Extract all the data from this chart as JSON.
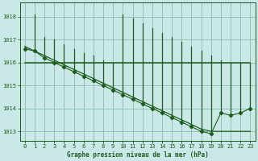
{
  "bg_color": "#cbe8e8",
  "grid_color": "#88bbaa",
  "line_color": "#1a5c1a",
  "title": "Graphe pression niveau de la mer (hPa)",
  "ylim": [
    1012.6,
    1018.6
  ],
  "xlim": [
    -0.5,
    23.5
  ],
  "yticks": [
    1013,
    1014,
    1015,
    1016,
    1017,
    1018
  ],
  "xticks": [
    0,
    1,
    2,
    3,
    4,
    5,
    6,
    7,
    8,
    9,
    10,
    11,
    12,
    13,
    14,
    15,
    16,
    17,
    18,
    19,
    20,
    21,
    22,
    23
  ],
  "hours": [
    0,
    1,
    2,
    3,
    4,
    5,
    6,
    7,
    8,
    9,
    10,
    11,
    12,
    13,
    14,
    15,
    16,
    17,
    18,
    19,
    20,
    21,
    22,
    23
  ],
  "pressure_main": [
    1016.7,
    1016.5,
    1016.3,
    1016.1,
    1015.9,
    1015.7,
    1015.5,
    1015.3,
    1015.1,
    1014.9,
    1014.7,
    1014.5,
    1014.3,
    1014.1,
    1013.9,
    1013.7,
    1013.5,
    1013.3,
    1013.1,
    1013.0,
    1013.0,
    1013.0,
    1013.0,
    1013.0
  ],
  "pressure_dots": [
    1016.6,
    1016.5,
    1016.2,
    1016.0,
    1015.8,
    1015.6,
    1015.4,
    1015.2,
    1015.0,
    1014.8,
    1014.6,
    1014.4,
    1014.2,
    1014.0,
    1013.8,
    1013.6,
    1013.4,
    1013.2,
    1013.0,
    1012.9,
    1013.8,
    1013.7,
    1013.8,
    1014.0
  ],
  "pressure_flat": [
    1016.0,
    1016.0,
    1016.0,
    1016.0,
    1016.0,
    1016.0,
    1016.0,
    1016.0,
    1016.0,
    1016.0,
    1016.0,
    1016.0,
    1016.0,
    1016.0,
    1016.0,
    1016.0,
    1016.0,
    1016.0,
    1016.0,
    1016.0,
    1016.0,
    1016.0,
    1016.0,
    1016.0
  ],
  "spike_tops": [
    1016.7,
    1018.1,
    1017.1,
    1017.0,
    1016.8,
    1016.6,
    1016.4,
    1016.3,
    1016.1,
    1016.0,
    1018.1,
    1017.9,
    1017.7,
    1017.5,
    1017.3,
    1017.1,
    1016.9,
    1016.7,
    1016.5,
    1016.3,
    1016.1,
    1016.0,
    1016.0,
    1016.0
  ],
  "spike_bottoms": [
    1016.6,
    1016.5,
    1016.2,
    1016.0,
    1015.8,
    1015.6,
    1015.4,
    1015.2,
    1015.0,
    1014.8,
    1014.6,
    1014.4,
    1014.2,
    1014.0,
    1013.8,
    1013.6,
    1013.4,
    1013.2,
    1013.0,
    1012.9,
    1013.8,
    1013.7,
    1013.8,
    1014.0
  ]
}
